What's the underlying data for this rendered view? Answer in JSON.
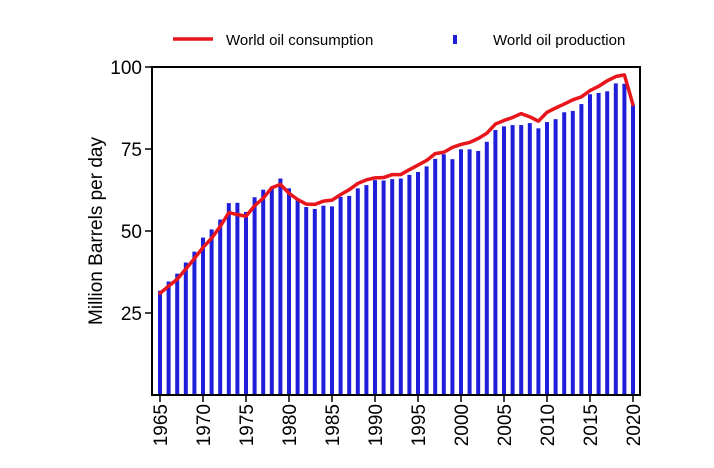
{
  "chart_data": {
    "type": "bar",
    "title": "",
    "xlabel": "",
    "ylabel": "Million Barrels per day",
    "xlim": [
      1965,
      2020
    ],
    "ylim": [
      0,
      100
    ],
    "y_ticks": [
      25,
      50,
      75,
      100
    ],
    "x_ticks": [
      1965,
      1970,
      1975,
      1980,
      1985,
      1990,
      1995,
      2000,
      2005,
      2010,
      2015,
      2020
    ],
    "grid": false,
    "legend_position": "top",
    "years": [
      1965,
      1966,
      1967,
      1968,
      1969,
      1970,
      1971,
      1972,
      1973,
      1974,
      1975,
      1976,
      1977,
      1978,
      1979,
      1980,
      1981,
      1982,
      1983,
      1984,
      1985,
      1986,
      1987,
      1988,
      1989,
      1990,
      1991,
      1992,
      1993,
      1994,
      1995,
      1996,
      1997,
      1998,
      1999,
      2000,
      2001,
      2002,
      2003,
      2004,
      2005,
      2006,
      2007,
      2008,
      2009,
      2010,
      2011,
      2012,
      2013,
      2014,
      2015,
      2016,
      2017,
      2018,
      2019,
      2020
    ],
    "series": [
      {
        "name": "World oil production",
        "kind": "bar",
        "color": "#1f1fdb",
        "values": [
          31.8,
          34.6,
          37.0,
          40.4,
          43.7,
          48.0,
          50.5,
          53.5,
          58.5,
          58.6,
          55.8,
          60.3,
          62.6,
          63.5,
          66.0,
          63.0,
          59.7,
          57.3,
          56.7,
          57.7,
          57.5,
          60.4,
          60.7,
          63.0,
          64.0,
          65.5,
          65.4,
          65.8,
          66.0,
          67.1,
          68.0,
          69.7,
          72.0,
          73.4,
          71.9,
          74.9,
          74.9,
          74.4,
          77.2,
          80.8,
          81.9,
          82.3,
          82.3,
          82.9,
          81.3,
          83.2,
          84.1,
          86.2,
          86.6,
          88.7,
          91.7,
          92.1,
          92.6,
          95.0,
          94.9,
          88.4
        ]
      },
      {
        "name": "World oil consumption",
        "kind": "line",
        "color": "#e8151b",
        "values": [
          31.0,
          33.2,
          35.3,
          38.4,
          41.6,
          45.0,
          47.8,
          51.4,
          55.6,
          55.0,
          54.5,
          57.7,
          60.0,
          63.2,
          64.2,
          61.5,
          59.6,
          58.2,
          58.1,
          59.1,
          59.4,
          61.1,
          62.6,
          64.5,
          65.6,
          66.2,
          66.3,
          67.2,
          67.2,
          68.7,
          70.1,
          71.5,
          73.6,
          74.0,
          75.5,
          76.4,
          77.0,
          78.2,
          79.8,
          82.6,
          83.7,
          84.6,
          85.8,
          84.8,
          83.5,
          86.2,
          87.5,
          88.7,
          90.0,
          90.9,
          92.8,
          94.1,
          95.8,
          97.1,
          97.6,
          88.5
        ]
      }
    ]
  }
}
